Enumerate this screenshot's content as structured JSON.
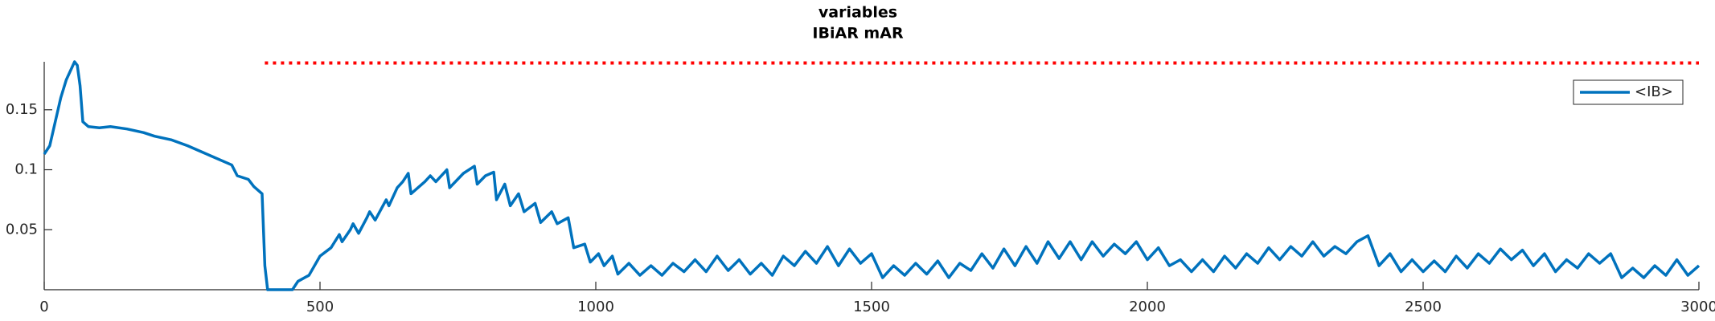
{
  "chart_data": {
    "type": "line",
    "title": "variables",
    "subtitle": "IBiAR mAR",
    "x": [
      0,
      10,
      20,
      30,
      40,
      50,
      55,
      60,
      65,
      70,
      80,
      100,
      120,
      150,
      180,
      200,
      230,
      260,
      280,
      300,
      330,
      340,
      350,
      370,
      380,
      390,
      395,
      400,
      405,
      450,
      460,
      480,
      500,
      520,
      535,
      540,
      555,
      560,
      570,
      585,
      590,
      600,
      620,
      625,
      640,
      650,
      660,
      665,
      690,
      700,
      710,
      730,
      735,
      760,
      780,
      785,
      800,
      815,
      820,
      835,
      845,
      860,
      870,
      890,
      900,
      920,
      930,
      950,
      960,
      980,
      990,
      1005,
      1015,
      1030,
      1040,
      1060,
      1080,
      1100,
      1120,
      1140,
      1160,
      1180,
      1200,
      1220,
      1240,
      1260,
      1280,
      1300,
      1320,
      1340,
      1360,
      1380,
      1400,
      1420,
      1440,
      1460,
      1480,
      1500,
      1520,
      1540,
      1560,
      1580,
      1600,
      1620,
      1640,
      1660,
      1680,
      1700,
      1720,
      1740,
      1760,
      1780,
      1800,
      1820,
      1840,
      1860,
      1880,
      1900,
      1920,
      1940,
      1960,
      1980,
      2000,
      2020,
      2040,
      2060,
      2080,
      2100,
      2120,
      2140,
      2160,
      2180,
      2200,
      2220,
      2240,
      2260,
      2280,
      2300,
      2320,
      2340,
      2360,
      2380,
      2400,
      2420,
      2440,
      2460,
      2480,
      2500,
      2520,
      2540,
      2560,
      2580,
      2600,
      2620,
      2640,
      2660,
      2680,
      2700,
      2720,
      2740,
      2760,
      2780,
      2800,
      2820,
      2840,
      2860,
      2880,
      2900,
      2920,
      2940,
      2960,
      2980,
      3000
    ],
    "series": [
      {
        "name": "<IB>",
        "color": "#0072bd",
        "values": [
          0.113,
          0.12,
          0.14,
          0.16,
          0.175,
          0.185,
          0.19,
          0.187,
          0.17,
          0.14,
          0.136,
          0.135,
          0.136,
          0.134,
          0.131,
          0.128,
          0.125,
          0.12,
          0.116,
          0.112,
          0.106,
          0.104,
          0.095,
          0.092,
          0.086,
          0.082,
          0.08,
          0.02,
          0.0,
          0.0,
          0.007,
          0.012,
          0.028,
          0.035,
          0.046,
          0.04,
          0.05,
          0.055,
          0.047,
          0.06,
          0.065,
          0.058,
          0.075,
          0.07,
          0.085,
          0.09,
          0.097,
          0.08,
          0.09,
          0.095,
          0.09,
          0.1,
          0.085,
          0.097,
          0.103,
          0.088,
          0.095,
          0.098,
          0.075,
          0.088,
          0.07,
          0.08,
          0.065,
          0.072,
          0.056,
          0.065,
          0.055,
          0.06,
          0.035,
          0.038,
          0.023,
          0.03,
          0.02,
          0.028,
          0.013,
          0.022,
          0.012,
          0.02,
          0.012,
          0.022,
          0.015,
          0.025,
          0.015,
          0.028,
          0.016,
          0.025,
          0.013,
          0.022,
          0.012,
          0.028,
          0.02,
          0.032,
          0.022,
          0.036,
          0.02,
          0.034,
          0.022,
          0.03,
          0.01,
          0.02,
          0.012,
          0.022,
          0.013,
          0.024,
          0.01,
          0.022,
          0.016,
          0.03,
          0.018,
          0.034,
          0.02,
          0.036,
          0.022,
          0.04,
          0.026,
          0.04,
          0.025,
          0.04,
          0.028,
          0.038,
          0.03,
          0.04,
          0.025,
          0.035,
          0.02,
          0.025,
          0.015,
          0.025,
          0.015,
          0.028,
          0.018,
          0.03,
          0.022,
          0.035,
          0.025,
          0.036,
          0.028,
          0.04,
          0.028,
          0.036,
          0.03,
          0.04,
          0.045,
          0.02,
          0.03,
          0.015,
          0.025,
          0.015,
          0.024,
          0.015,
          0.028,
          0.018,
          0.03,
          0.022,
          0.034,
          0.025,
          0.033,
          0.02,
          0.03,
          0.015,
          0.025,
          0.018,
          0.03,
          0.022,
          0.03,
          0.01,
          0.018,
          0.01,
          0.02,
          0.012,
          0.025,
          0.012,
          0.02
        ]
      }
    ],
    "reference_line": {
      "y": 0.189,
      "x": [
        400,
        3000
      ],
      "color": "#ff0000"
    },
    "xlim": [
      0,
      3000
    ],
    "xticks": [
      0,
      500,
      1000,
      1500,
      2000,
      2500,
      3000
    ],
    "ylim": [
      0,
      0.19
    ],
    "yticks": [
      0.05,
      0.1,
      0.15
    ],
    "legend": "upper right"
  }
}
